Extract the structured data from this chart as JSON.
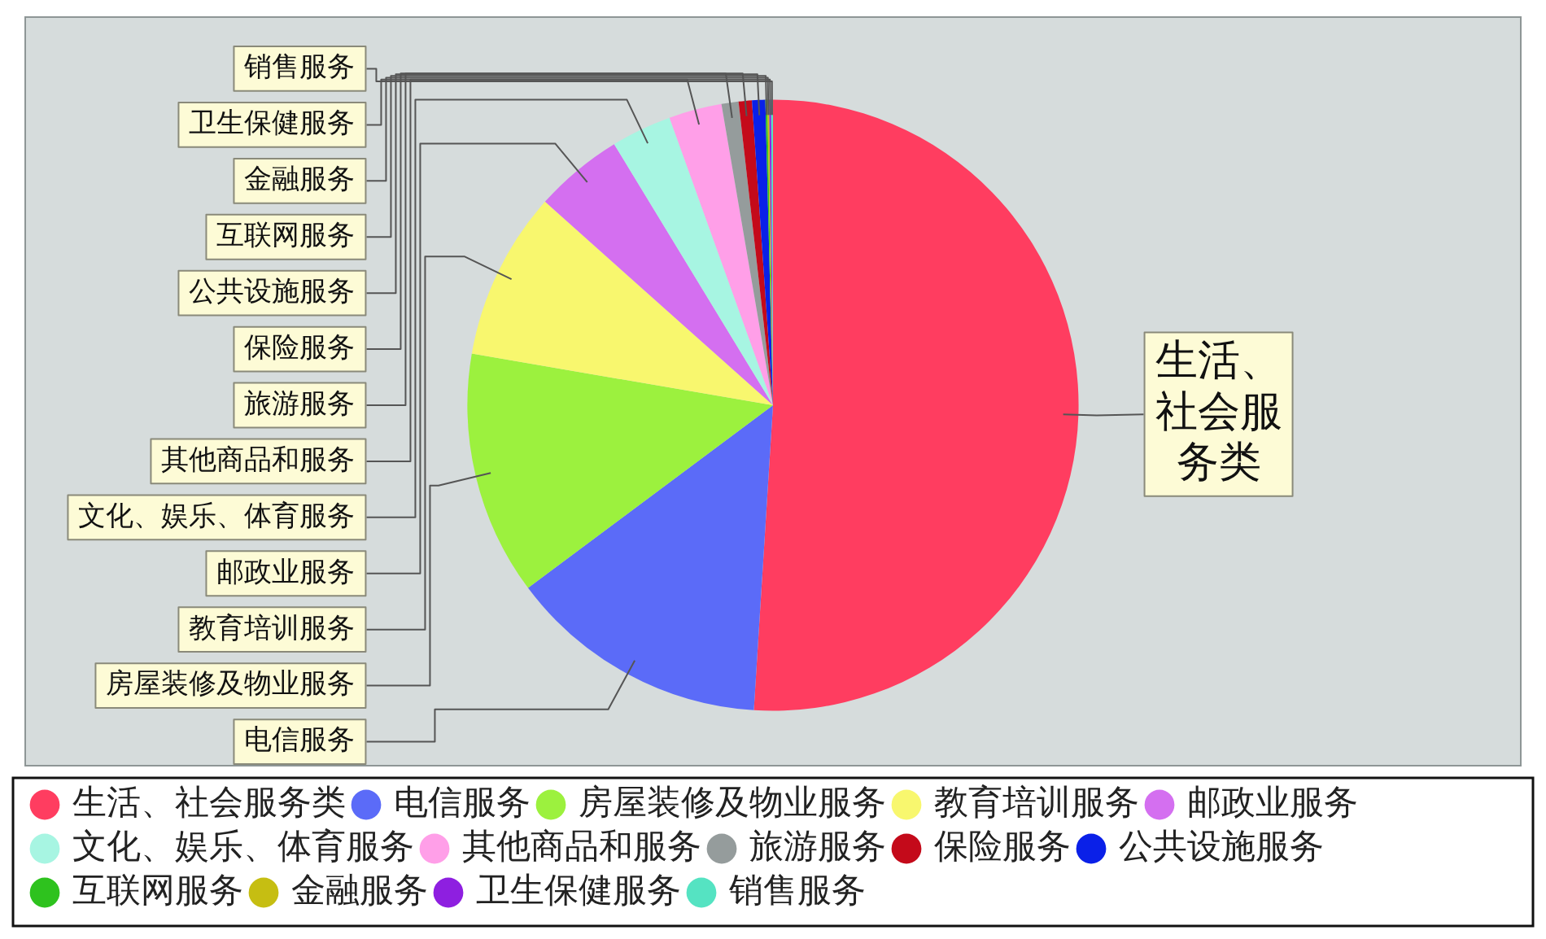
{
  "chart_data": {
    "type": "pie",
    "categories": [
      "生活、社会服务类",
      "电信服务",
      "房屋装修及物业服务",
      "教育培训服务",
      "邮政业服务",
      "文化、娱乐、体育服务",
      "其他商品和服务",
      "旅游服务",
      "保险服务",
      "公共设施服务",
      "互联网服务",
      "金融服务",
      "卫生保健服务",
      "销售服务"
    ],
    "values": [
      51.0,
      13.8,
      12.9,
      8.9,
      4.7,
      3.2,
      2.8,
      0.9,
      0.7,
      0.7,
      0.1,
      0.1,
      0.1,
      0.1
    ],
    "colors": [
      "#ff3d60",
      "#5b6bf8",
      "#9cf13e",
      "#f8f76e",
      "#d46ff0",
      "#a7f5e2",
      "#ff9fe8",
      "#959c9c",
      "#c40a1a",
      "#0a20e8",
      "#2ec21e",
      "#c6be12",
      "#8e1fe0",
      "#55e3c2"
    ],
    "legend": "bottom"
  }
}
